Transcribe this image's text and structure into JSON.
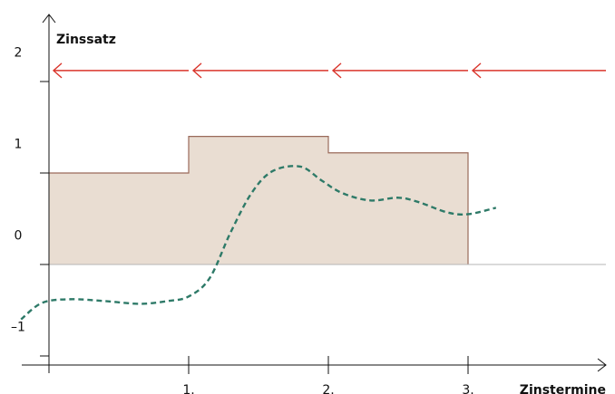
{
  "chart_data": {
    "type": "area",
    "title": "",
    "ylabel": "Zinssatz",
    "xlabel": "Zinstermine",
    "xlim": [
      0,
      4
    ],
    "ylim": [
      -1.5,
      2.2
    ],
    "y_ticks": [
      {
        "value": -1,
        "label": "–1"
      },
      {
        "value": 0,
        "label": "0"
      },
      {
        "value": 1,
        "label": "1"
      },
      {
        "value": 2,
        "label": "2"
      }
    ],
    "x_ticks": [
      {
        "value": 1,
        "label": "1."
      },
      {
        "value": 2,
        "label": "2."
      },
      {
        "value": 3,
        "label": "3."
      }
    ],
    "step_series": {
      "color": "#e9ddd2",
      "edge_color": "#9a6a5a",
      "steps": [
        {
          "x0": 0,
          "x1": 1,
          "y": 1.0
        },
        {
          "x0": 1,
          "x1": 2,
          "y": 1.4
        },
        {
          "x0": 2,
          "x1": 3,
          "y": 1.22
        }
      ]
    },
    "dashed_series": {
      "color": "#2e7a68",
      "points": [
        [
          -0.2,
          -0.6
        ],
        [
          -0.05,
          -0.42
        ],
        [
          0.15,
          -0.38
        ],
        [
          0.4,
          -0.4
        ],
        [
          0.65,
          -0.43
        ],
        [
          0.85,
          -0.4
        ],
        [
          1.0,
          -0.35
        ],
        [
          1.15,
          -0.15
        ],
        [
          1.3,
          0.35
        ],
        [
          1.45,
          0.78
        ],
        [
          1.6,
          1.02
        ],
        [
          1.8,
          1.07
        ],
        [
          1.95,
          0.92
        ],
        [
          2.1,
          0.78
        ],
        [
          2.3,
          0.7
        ],
        [
          2.5,
          0.73
        ],
        [
          2.65,
          0.68
        ],
        [
          2.85,
          0.57
        ],
        [
          3.0,
          0.55
        ],
        [
          3.2,
          0.62
        ]
      ]
    },
    "arrows": {
      "color": "#d9342b",
      "y": 2.12,
      "segments": [
        {
          "from": 1,
          "to": 0
        },
        {
          "from": 2,
          "to": 1
        },
        {
          "from": 3,
          "to": 2
        },
        {
          "from": 4,
          "to": 3
        }
      ]
    },
    "grid": false,
    "legend": "none"
  }
}
